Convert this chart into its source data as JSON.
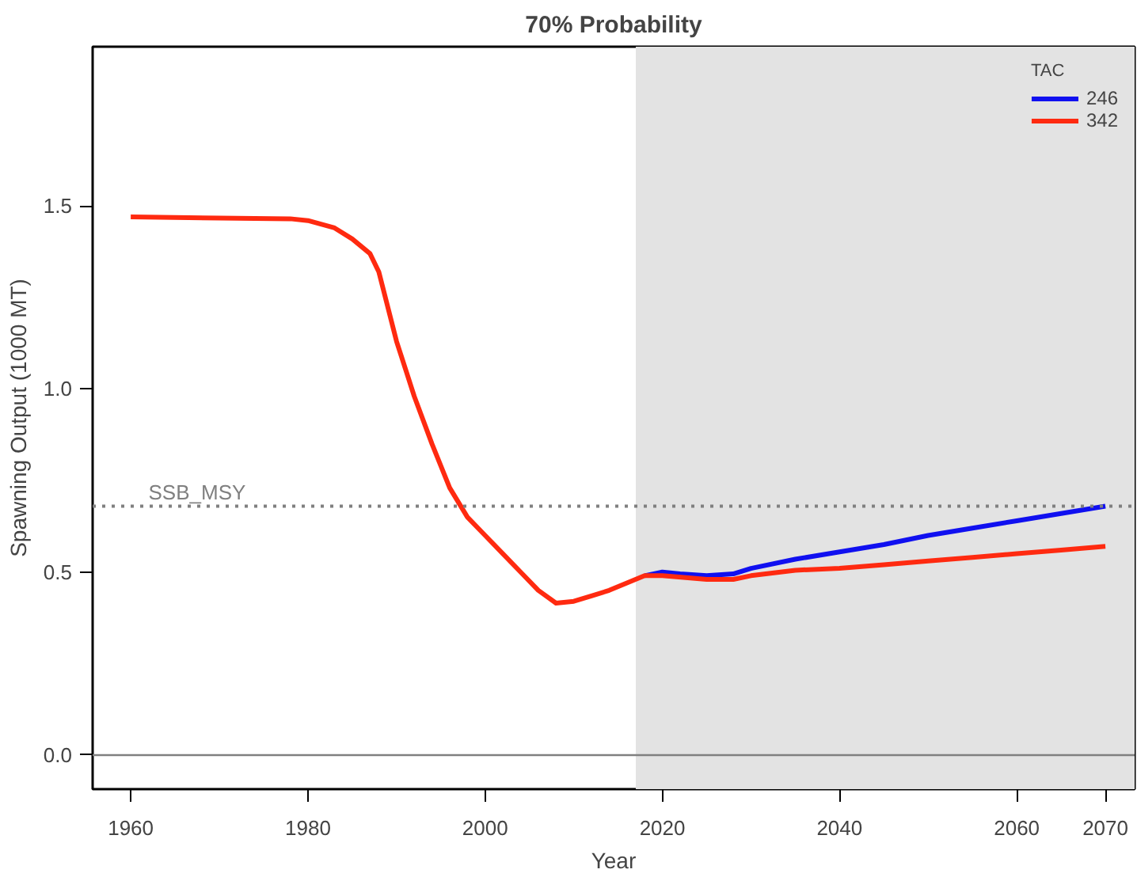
{
  "chart_data": {
    "type": "line",
    "title": "70% Probability",
    "xlabel": "Year",
    "ylabel": "Spawning Output (1000 MT)",
    "legend_title": "TAC",
    "xlim": [
      1955.7,
      2073.3
    ],
    "xticks": [
      1960,
      1980,
      2000,
      2020,
      2040,
      2060,
      2070
    ],
    "ylim": [
      -0.093,
      1.935
    ],
    "yticks": [
      {
        "value": 0,
        "label": "0.0"
      },
      0.5,
      {
        "value": 1,
        "label": "1.0"
      },
      1.5
    ],
    "grid": false,
    "legend": "top right",
    "series": [
      {
        "name": "246",
        "color": "#1010f0",
        "x": [
          2018,
          2020,
          2022,
          2025,
          2028,
          2030,
          2035,
          2040,
          2045,
          2050,
          2055,
          2060,
          2065,
          2070
        ],
        "values": [
          0.49,
          0.5,
          0.495,
          0.49,
          0.495,
          0.51,
          0.535,
          0.555,
          0.575,
          0.6,
          0.62,
          0.64,
          0.66,
          0.68
        ]
      },
      {
        "name": "342",
        "color": "#ff2a10",
        "x": [
          1960,
          1970,
          1978,
          1980,
          1983,
          1985,
          1987,
          1988,
          1990,
          1992,
          1994,
          1996,
          1998,
          2000,
          2002,
          2004,
          2006,
          2008,
          2010,
          2012,
          2014,
          2016,
          2018,
          2020,
          2025,
          2028,
          2030,
          2035,
          2040,
          2045,
          2050,
          2055,
          2060,
          2065,
          2070
        ],
        "values": [
          1.47,
          1.467,
          1.465,
          1.46,
          1.44,
          1.41,
          1.37,
          1.32,
          1.13,
          0.98,
          0.85,
          0.73,
          0.65,
          0.6,
          0.55,
          0.5,
          0.45,
          0.415,
          0.42,
          0.435,
          0.45,
          0.47,
          0.49,
          0.49,
          0.48,
          0.48,
          0.49,
          0.505,
          0.51,
          0.52,
          0.53,
          0.54,
          0.55,
          0.56,
          0.57
        ]
      }
    ],
    "ref_lines": [
      {
        "axis": "y",
        "value": 0.68,
        "label": "SSB_MSY",
        "color": "#808080",
        "line_style": "dotted"
      },
      {
        "axis": "y",
        "value": 0,
        "color": "#808080",
        "line_style": "solid"
      }
    ],
    "bands": [
      {
        "axis": "x",
        "from": 2017,
        "to": 2073.3,
        "color": "#e3e3e3"
      }
    ]
  }
}
